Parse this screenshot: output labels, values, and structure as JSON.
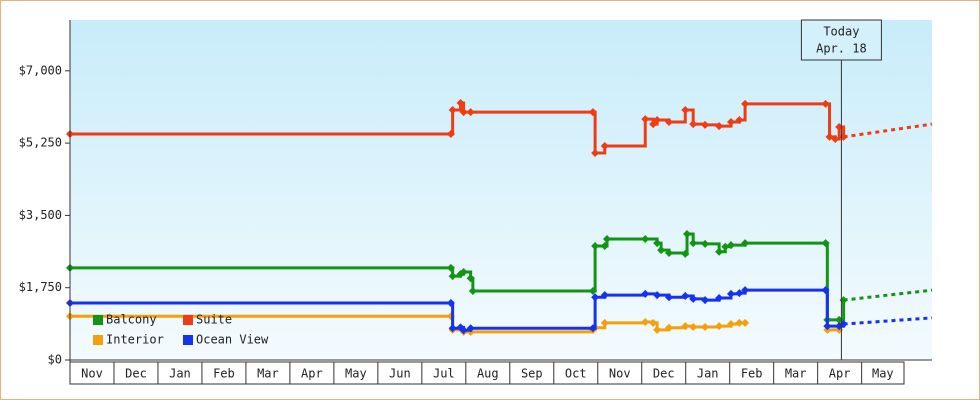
{
  "chart_data": {
    "type": "step-line",
    "xlim": [
      0,
      19.6
    ],
    "xticks": [
      {
        "value": 0,
        "label": "Nov"
      },
      {
        "value": 1,
        "label": "Dec"
      },
      {
        "value": 2,
        "label": "Jan"
      },
      {
        "value": 3,
        "label": "Feb"
      },
      {
        "value": 4,
        "label": "Mar"
      },
      {
        "value": 5,
        "label": "Apr"
      },
      {
        "value": 6,
        "label": "May"
      },
      {
        "value": 7,
        "label": "Jun"
      },
      {
        "value": 8,
        "label": "Jul"
      },
      {
        "value": 9,
        "label": "Aug"
      },
      {
        "value": 10,
        "label": "Sep"
      },
      {
        "value": 11,
        "label": "Oct"
      },
      {
        "value": 12,
        "label": "Nov"
      },
      {
        "value": 13,
        "label": "Dec"
      },
      {
        "value": 14,
        "label": "Jan"
      },
      {
        "value": 15,
        "label": "Feb"
      },
      {
        "value": 16,
        "label": "Mar"
      },
      {
        "value": 17,
        "label": "Apr"
      },
      {
        "value": 18,
        "label": "May"
      }
    ],
    "ylim": [
      0,
      8230
    ],
    "yticks": [
      {
        "value": 0,
        "label": "$0"
      },
      {
        "value": 1750,
        "label": "$1,750"
      },
      {
        "value": 3500,
        "label": "$3,500"
      },
      {
        "value": 5250,
        "label": "$5,250"
      },
      {
        "value": 7000,
        "label": "$7,000"
      }
    ],
    "today": {
      "x": 17.54,
      "label": "Today",
      "date": "Apr. 18"
    },
    "series": [
      {
        "name": "Balcony",
        "color": "#149414",
        "x": [
          0,
          8.66,
          8.7,
          8.88,
          8.95,
          9.11,
          9.16,
          11.89,
          11.94,
          12.16,
          12.21,
          13.08,
          13.35,
          13.44,
          13.62,
          13.99,
          14.03,
          14.17,
          14.44,
          14.76,
          14.9,
          15.03,
          15.35,
          17.18,
          17.22,
          17.49,
          17.59
        ],
        "values": [
          2230,
          2230,
          2030,
          2080,
          2130,
          1980,
          1670,
          1670,
          2760,
          2760,
          2930,
          2930,
          2830,
          2660,
          2590,
          2570,
          3050,
          2830,
          2810,
          2620,
          2740,
          2780,
          2830,
          2830,
          970,
          970,
          1450
        ],
        "forecast": {
          "x": [
            17.59,
            19.6
          ],
          "values": [
            1450,
            1690
          ]
        }
      },
      {
        "name": "Suite",
        "color": "#f03c14",
        "x": [
          0,
          8.66,
          8.7,
          8.88,
          8.95,
          9.11,
          11.89,
          11.94,
          12.16,
          13.08,
          13.26,
          13.35,
          13.62,
          13.99,
          14.17,
          14.44,
          14.76,
          15.03,
          15.22,
          15.35,
          17.18,
          17.27,
          17.4,
          17.49,
          17.59
        ],
        "values": [
          5470,
          5470,
          6050,
          6220,
          6000,
          6000,
          6000,
          5010,
          5180,
          5830,
          5710,
          5810,
          5760,
          6050,
          5710,
          5690,
          5660,
          5760,
          5810,
          6200,
          6200,
          5400,
          5350,
          5640,
          5400
        ],
        "forecast": {
          "x": [
            17.59,
            19.6
          ],
          "values": [
            5400,
            5710
          ]
        }
      },
      {
        "name": "Interior",
        "color": "#f5a00a",
        "x": [
          0,
          8.66,
          8.7,
          8.95,
          9.11,
          11.89,
          11.94,
          12.16,
          13.08,
          13.26,
          13.35,
          13.62,
          13.99,
          14.17,
          14.44,
          14.76,
          15.03,
          15.22,
          15.35,
          17.2,
          17.22,
          17.49
        ],
        "values": [
          1060,
          1060,
          730,
          680,
          680,
          730,
          780,
          900,
          920,
          900,
          730,
          780,
          820,
          800,
          800,
          820,
          870,
          900,
          900,
          null,
          730,
          730
        ]
      },
      {
        "name": "Ocean View",
        "color": "#1432f0",
        "x": [
          0,
          8.66,
          8.7,
          8.88,
          8.95,
          9.11,
          11.89,
          11.94,
          12.16,
          13.08,
          13.35,
          13.62,
          13.99,
          14.17,
          14.44,
          14.76,
          15.03,
          15.22,
          15.35,
          17.18,
          17.22,
          17.49,
          17.59
        ],
        "values": [
          1380,
          1380,
          770,
          790,
          720,
          770,
          770,
          1520,
          1570,
          1600,
          1570,
          1520,
          1550,
          1480,
          1450,
          1500,
          1600,
          1620,
          1690,
          1690,
          820,
          820,
          870
        ],
        "forecast": {
          "x": [
            17.59,
            19.6
          ],
          "values": [
            870,
            1020
          ]
        }
      }
    ]
  }
}
